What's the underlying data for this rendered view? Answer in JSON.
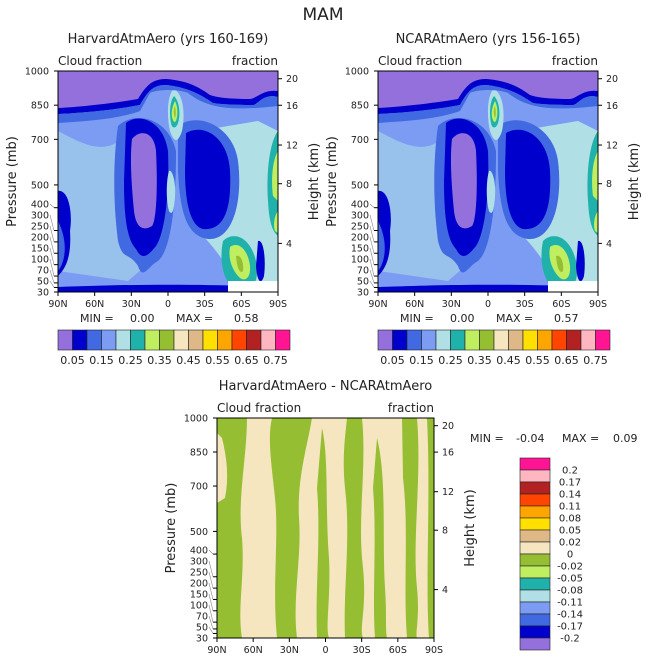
{
  "title": "MAM",
  "colors": [
    "#9370DB",
    "#0000CD",
    "#4169E1",
    "#7B9CF2",
    "#B0E0E6",
    "#20B2AA",
    "#BFEF60",
    "#96BE32",
    "#F5E6C0",
    "#DEB887",
    "#FFE000",
    "#FFA500",
    "#FF4500",
    "#B22222",
    "#FFB6C1",
    "#FF1493"
  ],
  "chart_data": [
    {
      "type": "heatmap",
      "title": "HarvardAtmAero (yrs 160-169)",
      "left_label": "Cloud fraction",
      "right_label": "fraction",
      "ylabel": "Pressure (mb)",
      "y2label": "Height (km)",
      "x_ticks": [
        "90N",
        "60N",
        "30N",
        "0",
        "30S",
        "60S",
        "90S"
      ],
      "y_ticks": [
        30,
        50,
        70,
        100,
        150,
        200,
        250,
        300,
        400,
        500,
        700,
        850,
        1000
      ],
      "y2_ticks": [
        20,
        16,
        12,
        8,
        4
      ],
      "ylim": [
        1000,
        30
      ],
      "min_label": "MIN =",
      "min_value": "0.00",
      "max_label": "MAX =",
      "max_value": "0.58",
      "colorbar_labels": [
        "0.05",
        "0.15",
        "0.25",
        "0.35",
        "0.45",
        "0.55",
        "0.65",
        "0.75"
      ]
    },
    {
      "type": "heatmap",
      "title": "NCARAtmAero (yrs 156-165)",
      "left_label": "Cloud fraction",
      "right_label": "fraction",
      "ylabel": "Pressure (mb)",
      "y2label": "Height (km)",
      "x_ticks": [
        "90N",
        "60N",
        "30N",
        "0",
        "30S",
        "60S",
        "90S"
      ],
      "y_ticks": [
        30,
        50,
        70,
        100,
        150,
        200,
        250,
        300,
        400,
        500,
        700,
        850,
        1000
      ],
      "y2_ticks": [
        20,
        16,
        12,
        8,
        4
      ],
      "ylim": [
        1000,
        30
      ],
      "min_label": "MIN =",
      "min_value": "0.00",
      "max_label": "MAX =",
      "max_value": "0.57",
      "colorbar_labels": [
        "0.05",
        "0.15",
        "0.25",
        "0.35",
        "0.45",
        "0.55",
        "0.65",
        "0.75"
      ]
    },
    {
      "type": "heatmap",
      "title": "HarvardAtmAero - NCARAtmAero",
      "left_label": "Cloud fraction",
      "right_label": "fraction",
      "ylabel": "Pressure (mb)",
      "y2label": "Height (km)",
      "x_ticks": [
        "90N",
        "60N",
        "30N",
        "0",
        "30S",
        "60S",
        "90S"
      ],
      "y_ticks": [
        30,
        50,
        70,
        100,
        150,
        200,
        250,
        300,
        400,
        500,
        700,
        850,
        1000
      ],
      "y2_ticks": [
        20,
        16,
        12,
        8,
        4
      ],
      "ylim": [
        1000,
        30
      ],
      "min_label": "MIN =",
      "min_value": "-0.04",
      "max_label": "MAX =",
      "max_value": "0.09",
      "colorbar_labels": [
        "0.2",
        "0.17",
        "0.14",
        "0.11",
        "0.08",
        "0.05",
        "0.02",
        "0",
        "-0.02",
        "-0.05",
        "-0.08",
        "-0.11",
        "-0.14",
        "-0.17",
        "-0.2"
      ]
    }
  ]
}
